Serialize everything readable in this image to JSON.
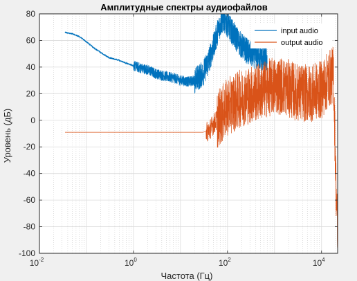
{
  "chart_data": {
    "type": "line",
    "title": "Амплитудные спектры аудиофайлов",
    "xlabel": "Частота (Гц)",
    "ylabel": "Уровень (дБ)",
    "xscale": "log",
    "xlim": [
      0.01,
      22000
    ],
    "ylim": [
      -100,
      80
    ],
    "yticks": [
      -100,
      -80,
      -60,
      -40,
      -20,
      0,
      20,
      40,
      60,
      80
    ],
    "xticks": [
      {
        "base": "10",
        "exp": "-2",
        "value": 0.01
      },
      {
        "base": "10",
        "exp": "0",
        "value": 1
      },
      {
        "base": "10",
        "exp": "2",
        "value": 100
      },
      {
        "base": "10",
        "exp": "4",
        "value": 10000
      }
    ],
    "grid": true,
    "minor_grid": true,
    "legend_position": "top-right",
    "series": [
      {
        "name": "input audio",
        "color": "#0072BD",
        "points": [
          [
            0.035,
            66
          ],
          [
            0.05,
            65
          ],
          [
            0.07,
            63
          ],
          [
            0.1,
            59
          ],
          [
            0.15,
            54
          ],
          [
            0.2,
            51
          ],
          [
            0.3,
            47
          ],
          [
            0.5,
            45
          ],
          [
            0.7,
            43
          ],
          [
            1,
            41
          ],
          [
            1.5,
            39
          ],
          [
            2,
            38
          ],
          [
            3,
            35
          ],
          [
            5,
            33
          ],
          [
            7,
            32
          ],
          [
            10,
            30
          ],
          [
            15,
            29
          ],
          [
            20,
            30
          ],
          [
            30,
            35
          ],
          [
            40,
            45
          ],
          [
            50,
            55
          ],
          [
            60,
            65
          ],
          [
            70,
            72
          ],
          [
            80,
            76
          ],
          [
            90,
            74
          ],
          [
            100,
            72
          ],
          [
            150,
            62
          ],
          [
            200,
            56
          ],
          [
            300,
            50
          ],
          [
            500,
            47
          ],
          [
            700,
            45
          ]
        ]
      },
      {
        "name": "output audio",
        "color": "#D95319",
        "points": [
          [
            0.035,
            -9
          ],
          [
            1,
            -9
          ],
          [
            10,
            -9
          ],
          [
            30,
            -9
          ],
          [
            40,
            -8
          ],
          [
            50,
            -3
          ],
          [
            70,
            3
          ],
          [
            100,
            10
          ],
          [
            150,
            14
          ],
          [
            200,
            17
          ],
          [
            300,
            19
          ],
          [
            500,
            22
          ],
          [
            700,
            24
          ],
          [
            1000,
            26
          ],
          [
            1500,
            26
          ],
          [
            2000,
            24
          ],
          [
            3000,
            21
          ],
          [
            5000,
            20
          ],
          [
            7000,
            21
          ],
          [
            10000,
            23
          ],
          [
            15000,
            32
          ],
          [
            18000,
            35
          ],
          [
            20000,
            -40
          ],
          [
            22000,
            -90
          ]
        ]
      }
    ]
  }
}
